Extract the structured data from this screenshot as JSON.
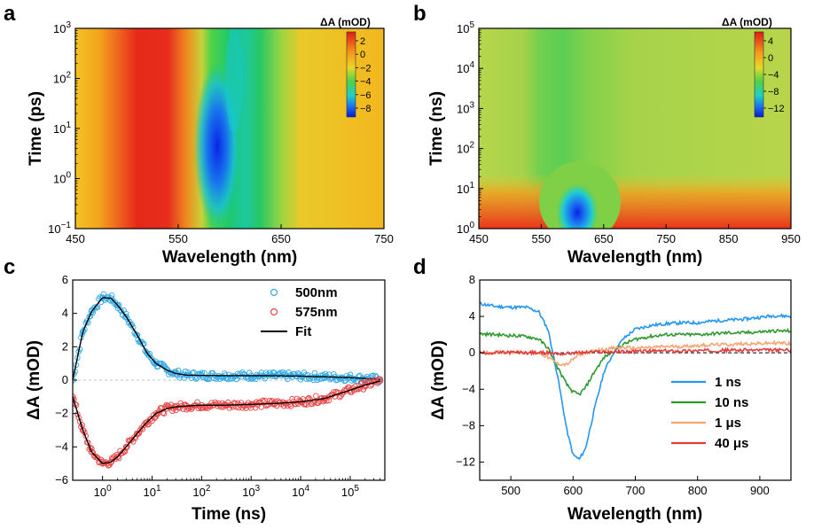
{
  "panels": {
    "a": "a",
    "b": "b",
    "c": "c",
    "d": "d"
  },
  "chart_data": [
    {
      "panel": "a",
      "type": "heatmap",
      "xlabel": "Wavelength (nm)",
      "ylabel": "Time (ps)",
      "xlim": [
        450,
        750
      ],
      "xticks": [
        450,
        550,
        650,
        750
      ],
      "ylim": [
        0.1,
        1000
      ],
      "yscale": "log",
      "yticks": [
        "10^-1",
        "10^0",
        "10^1",
        "10^2",
        "10^3"
      ],
      "colorbar": {
        "title": "ΔA (mOD)",
        "ticks": [
          "2",
          "0",
          "−2",
          "−4",
          "−6",
          "−8"
        ],
        "range": [
          -9,
          3.5
        ]
      },
      "features": {
        "positive_band_center_nm": 520,
        "negative_band_center_nm": 600,
        "negative_band_min_mOD": -8.5,
        "positive_band_max_mOD": 3
      }
    },
    {
      "panel": "b",
      "type": "heatmap",
      "xlabel": "Wavelength (nm)",
      "ylabel": "Time (ns)",
      "xlim": [
        450,
        950
      ],
      "xticks": [
        450,
        550,
        650,
        750,
        850,
        950
      ],
      "ylim": [
        1,
        100000
      ],
      "yscale": "log",
      "yticks": [
        "10^0",
        "10^1",
        "10^2",
        "10^3",
        "10^4",
        "10^5"
      ],
      "colorbar": {
        "title": "ΔA (mOD)",
        "ticks": [
          "4",
          "0",
          "−4",
          "−8",
          "−12"
        ],
        "range": [
          -13,
          5.5
        ]
      },
      "features": {
        "negative_band_center_nm": 608,
        "negative_band_min_mOD": -12,
        "early_positive_mOD": 4
      }
    },
    {
      "panel": "c",
      "type": "scatter",
      "xlabel": "Time (ns)",
      "ylabel": "ΔA (mOD)",
      "xscale": "log",
      "xlim": [
        0.25,
        500000
      ],
      "xticks": [
        "10^0",
        "10^1",
        "10^2",
        "10^3",
        "10^4",
        "10^5"
      ],
      "ylim": [
        -6,
        6
      ],
      "yticks": [
        -6,
        -4,
        -2,
        0,
        2,
        4,
        6
      ],
      "legend_position": "top-right",
      "series": [
        {
          "name": "500nm",
          "color": "#2fa8e6",
          "marker": "circle",
          "x": [
            0.25,
            0.4,
            0.6,
            1,
            1.5,
            2,
            3,
            5,
            8,
            12,
            20,
            30,
            50,
            100,
            300,
            1000,
            3000,
            10000,
            30000,
            100000,
            200000,
            400000
          ],
          "y": [
            0,
            2.9,
            4.1,
            4.95,
            4.9,
            4.5,
            3.8,
            2.7,
            1.6,
            1.0,
            0.6,
            0.4,
            0.3,
            0.28,
            0.27,
            0.27,
            0.26,
            0.24,
            0.2,
            0.15,
            0.1,
            0.05
          ]
        },
        {
          "name": "575nm",
          "color": "#e84545",
          "marker": "circle",
          "x": [
            0.25,
            0.4,
            0.6,
            1,
            1.5,
            2,
            3,
            5,
            8,
            12,
            20,
            30,
            50,
            100,
            300,
            1000,
            3000,
            10000,
            30000,
            100000,
            200000,
            400000
          ],
          "y": [
            -1.0,
            -3.0,
            -4.3,
            -5.0,
            -4.9,
            -4.6,
            -4.0,
            -3.2,
            -2.5,
            -2.0,
            -1.7,
            -1.6,
            -1.55,
            -1.5,
            -1.5,
            -1.45,
            -1.4,
            -1.3,
            -1.1,
            -0.6,
            -0.3,
            -0.05
          ]
        },
        {
          "name": "Fit",
          "color": "#000000",
          "marker": "line"
        }
      ]
    },
    {
      "panel": "d",
      "type": "line",
      "xlabel": "Wavelength (nm)",
      "ylabel": "ΔA (mOD)",
      "xlim": [
        450,
        950
      ],
      "xticks": [
        500,
        600,
        700,
        800,
        900
      ],
      "ylim": [
        -14,
        8
      ],
      "yticks": [
        -12,
        -8,
        -4,
        0,
        4,
        8
      ],
      "legend_position": "bottom-right",
      "x": [
        450,
        475,
        500,
        525,
        545,
        560,
        575,
        590,
        600,
        610,
        620,
        635,
        650,
        665,
        680,
        700,
        725,
        750,
        775,
        800,
        825,
        850,
        875,
        900,
        925,
        950
      ],
      "series": [
        {
          "name": "1 ns",
          "color": "#2196f3",
          "y": [
            5.4,
            5.1,
            5.0,
            5.0,
            4.5,
            2.5,
            -2.5,
            -8.5,
            -11.2,
            -11.7,
            -10.5,
            -6.0,
            -2.0,
            0.0,
            1.5,
            2.6,
            3.0,
            3.2,
            3.3,
            3.3,
            3.5,
            3.6,
            3.7,
            3.9,
            4.1,
            4.0
          ]
        },
        {
          "name": "10 ns",
          "color": "#2e9a2e",
          "y": [
            2.1,
            2.0,
            1.9,
            1.8,
            1.5,
            0.5,
            -1.6,
            -3.5,
            -4.3,
            -4.6,
            -3.8,
            -2.0,
            -0.5,
            0.2,
            0.9,
            1.5,
            1.8,
            2.0,
            2.0,
            2.0,
            2.1,
            2.2,
            2.2,
            2.3,
            2.4,
            2.4
          ]
        },
        {
          "name": "1 μs",
          "color": "#f5a573",
          "y": [
            0.0,
            0.05,
            0.1,
            0.1,
            0.0,
            -0.5,
            -1.2,
            -1.3,
            -0.7,
            -0.2,
            0.0,
            0.2,
            0.4,
            0.5,
            0.6,
            0.5,
            0.6,
            0.7,
            0.7,
            0.8,
            0.9,
            0.9,
            1.0,
            1.0,
            1.1,
            1.0
          ]
        },
        {
          "name": "40 μs",
          "color": "#e23b3b",
          "y": [
            0.0,
            0.0,
            0.05,
            0.0,
            0.0,
            0.0,
            -0.1,
            -0.1,
            0.0,
            0.0,
            0.05,
            0.1,
            0.1,
            0.1,
            0.15,
            0.15,
            0.2,
            0.2,
            0.2,
            0.25,
            0.25,
            0.3,
            0.3,
            0.3,
            0.3,
            0.3
          ]
        }
      ]
    }
  ]
}
